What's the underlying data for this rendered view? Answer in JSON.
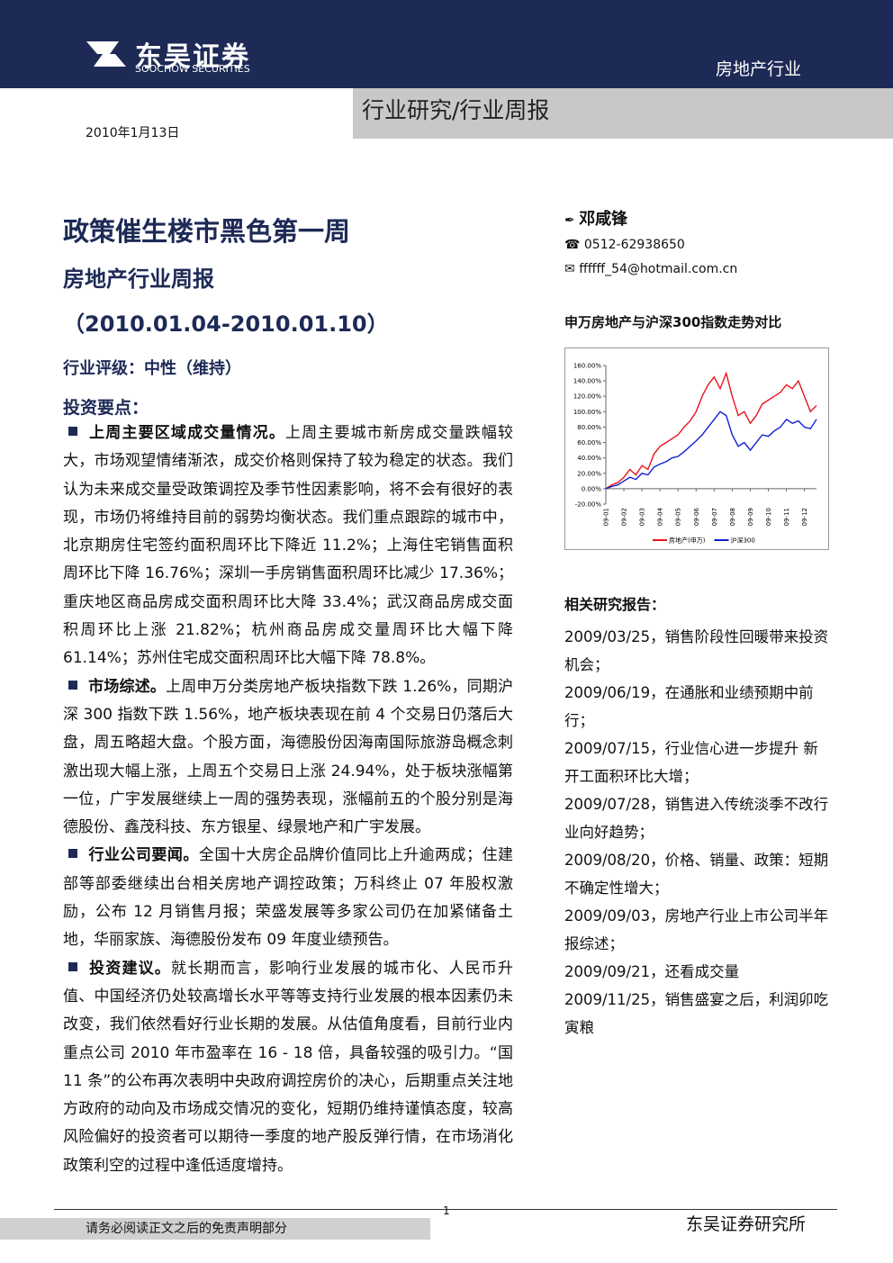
{
  "header": {
    "logo_cn": "东吴证券",
    "logo_en": "SOOCHOW SECURITIES",
    "sector": "房地产行业",
    "report_type": "行业研究/行业周报"
  },
  "date": "2010年1月13日",
  "title": "政策催生楼市黑色第一周",
  "subtitle": "房地产行业周报",
  "period": "（2010.01.04-2010.01.10）",
  "rating": "行业评级：中性（维持）",
  "key_points_heading": "投资要点：",
  "paragraphs": [
    {
      "lead": "上周主要区域成交量情况。",
      "text": "上周主要城市新房成交量跌幅较大，市场观望情绪渐浓，成交价格则保持了较为稳定的状态。我们认为未来成交量受政策调控及季节性因素影响，将不会有很好的表现，市场仍将维持目前的弱势均衡状态。我们重点跟踪的城市中，北京期房住宅签约面积周环比下降近 11.2%；上海住宅销售面积周环比下降 16.76%；深圳一手房销售面积周环比减少 17.36%；重庆地区商品房成交面积周环比大降 33.4%；武汉商品房成交面积周环比上涨 21.82%；杭州商品房成交量周环比大幅下降 61.14%；苏州住宅成交面积周环比大幅下降 78.8%。"
    },
    {
      "lead": "市场综述。",
      "text": "上周申万分类房地产板块指数下跌 1.26%，同期沪深 300 指数下跌 1.56%，地产板块表现在前 4 个交易日仍落后大盘，周五略超大盘。个股方面，海德股份因海南国际旅游岛概念刺激出现大幅上涨，上周五个交易日上涨 24.94%，处于板块涨幅第一位，广宇发展继续上一周的强势表现，涨幅前五的个股分别是海德股份、鑫茂科技、东方银星、绿景地产和广宇发展。"
    },
    {
      "lead": "行业公司要闻。",
      "text": "全国十大房企品牌价值同比上升逾两成；住建部等部委继续出台相关房地产调控政策；万科终止 07 年股权激励，公布 12 月销售月报；荣盛发展等多家公司仍在加紧储备土地，华丽家族、海德股份发布 09 年度业绩预告。"
    },
    {
      "lead": "投资建议。",
      "text": "就长期而言，影响行业发展的城市化、人民币升值、中国经济仍处较高增长水平等等支持行业发展的根本因素仍未改变，我们依然看好行业长期的发展。从估值角度看，目前行业内重点公司 2010 年市盈率在 16 - 18 倍，具备较强的吸引力。“国 11 条”的公布再次表明中央政府调控房价的决心，后期重点关注地方政府的动向及市场成交情况的变化，短期仍维持谨慎态度，较高风险偏好的投资者可以期待一季度的地产股反弹行情，在市场消化政策利空的过程中逢低适度增持。"
    }
  ],
  "author": {
    "name": "邓咸锋",
    "phone": "0512-62938650",
    "email": "ffffff_54@hotmail.com.cn"
  },
  "chart_data": {
    "type": "line",
    "title": "申万房地产与沪深300指数走势对比",
    "categories": [
      "09-01",
      null,
      null,
      "09-02",
      null,
      null,
      "09-03",
      null,
      null,
      "09-04",
      null,
      null,
      "09-05",
      null,
      null,
      "09-06",
      null,
      null,
      "09-07",
      null,
      null,
      "09-08",
      null,
      null,
      "09-09",
      null,
      null,
      "09-10",
      null,
      null,
      "09-11",
      null,
      null,
      "09-12",
      null,
      null
    ],
    "series": [
      {
        "name": "房地产(申万)",
        "color": "#e8141c",
        "values": [
          0,
          5,
          8,
          15,
          25,
          18,
          30,
          25,
          45,
          55,
          60,
          65,
          70,
          80,
          88,
          100,
          120,
          135,
          145,
          130,
          150,
          120,
          95,
          100,
          85,
          95,
          110,
          115,
          120,
          125,
          135,
          130,
          140,
          120,
          100,
          108
        ]
      },
      {
        "name": "沪深300",
        "color": "#1020d0",
        "values": [
          0,
          3,
          5,
          10,
          15,
          12,
          20,
          18,
          28,
          32,
          35,
          40,
          42,
          48,
          55,
          62,
          70,
          80,
          90,
          100,
          95,
          70,
          55,
          60,
          50,
          60,
          70,
          68,
          75,
          80,
          90,
          85,
          88,
          80,
          78,
          90
        ]
      }
    ],
    "ylim": [
      -20,
      160
    ],
    "yticks": [
      {
        "value": -20,
        "label": "-20.00%"
      },
      {
        "value": 0,
        "label": "0.00%"
      },
      {
        "value": 20,
        "label": "20.00%"
      },
      {
        "value": 40,
        "label": "40.00%"
      },
      {
        "value": 60,
        "label": "60.00%"
      },
      {
        "value": 80,
        "label": "80.00%"
      },
      {
        "value": 100,
        "label": "100.00%"
      },
      {
        "value": 120,
        "label": "120.00%"
      },
      {
        "value": 140,
        "label": "140.00%"
      },
      {
        "value": 160,
        "label": "160.00%"
      }
    ],
    "legend": "bottom"
  },
  "related": {
    "heading": "相关研究报告：",
    "items": [
      "2009/03/25，销售阶段性回暖带来投资机会；",
      "2009/06/19，在通胀和业绩预期中前行；",
      "2009/07/15，行业信心进一步提升 新开工面积环比大增；",
      "2009/07/28，销售进入传统淡季不改行业向好趋势；",
      "2009/08/20，价格、销量、政策：短期不确定性增大；",
      "2009/09/03，房地产行业上市公司半年报综述；",
      "2009/09/21，还看成交量",
      "2009/11/25，销售盛宴之后，利润卯吃寅粮"
    ]
  },
  "footer": {
    "page": "1",
    "disclaimer": "请务必阅读正文之后的免责声明部分",
    "company": "东吴证券研究所"
  }
}
